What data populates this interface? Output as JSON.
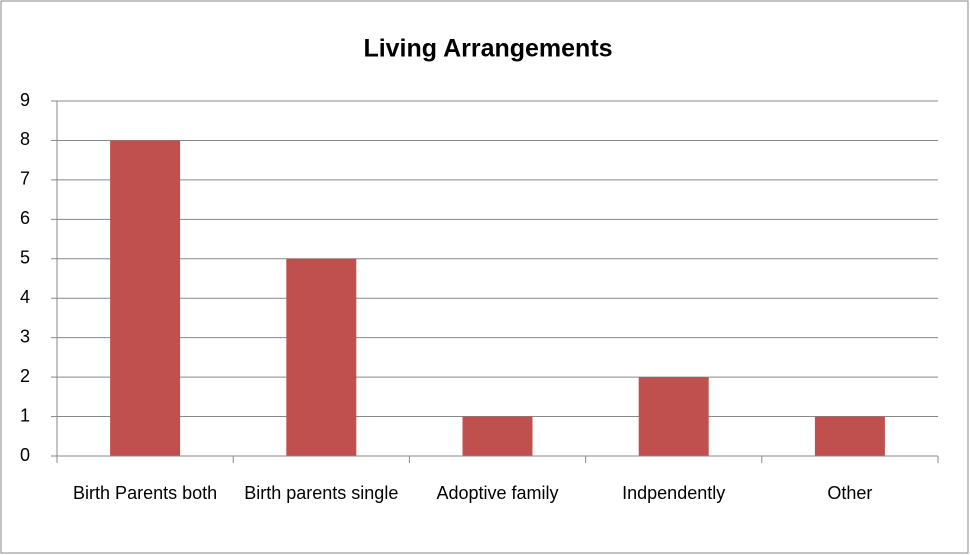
{
  "chart_data": {
    "type": "bar",
    "title": "Living Arrangements",
    "categories": [
      "Birth Parents both",
      "Birth parents single",
      "Adoptive family",
      "Indpendently",
      "Other"
    ],
    "values": [
      8,
      5,
      1,
      2,
      1
    ],
    "color": "#c0504d",
    "ylim": [
      0,
      9
    ],
    "yticks": [
      0,
      1,
      2,
      3,
      4,
      5,
      6,
      7,
      8,
      9
    ],
    "grid": true
  }
}
